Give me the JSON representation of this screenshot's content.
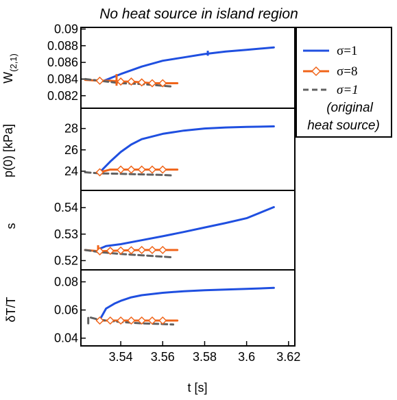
{
  "chart_data": {
    "type": "line",
    "title": "No heat source in island region",
    "xlabel": "t [s]",
    "xticks": [
      "3.54",
      "3.56",
      "3.58",
      "3.6",
      "3.62"
    ],
    "xlim": [
      3.521,
      3.623
    ],
    "colors": {
      "sigma1": "#1f4fe0",
      "sigma8": "#f06419",
      "original": "#606060"
    },
    "legend": {
      "placement": "top-right",
      "entries": [
        {
          "series": "sigma1",
          "label": "σ=1"
        },
        {
          "series": "sigma8",
          "label": "σ=8"
        },
        {
          "series": "original",
          "label": "σ=1",
          "note1": "(original",
          "note2": "heat source)"
        }
      ]
    },
    "panels": [
      {
        "ylabel": "W",
        "ylabel_sub": "(2,1)",
        "ylim": [
          0.0805,
          0.0902
        ],
        "yticks": [
          0.082,
          0.084,
          0.086,
          0.088,
          0.09
        ],
        "yticklabels": [
          "0.082",
          "0.084",
          "0.086",
          "0.088",
          "0.09"
        ],
        "series": [
          {
            "key": "sigma1",
            "x": [
              3.532,
              3.54,
              3.55,
              3.56,
              3.57,
              3.58,
              3.59,
              3.6,
              3.613
            ],
            "y": [
              0.0838,
              0.0846,
              0.0855,
              0.0862,
              0.0866,
              0.087,
              0.0873,
              0.0875,
              0.0878
            ]
          },
          {
            "key": "sigma8",
            "x": [
              3.523,
              3.53,
              3.535,
              3.54,
              3.545,
              3.55,
              3.555,
              3.56,
              3.567
            ],
            "y": [
              0.0839,
              0.0838,
              0.0838,
              0.0837,
              0.0837,
              0.0836,
              0.0835,
              0.0835,
              0.0835
            ]
          },
          {
            "key": "original",
            "x": [
              3.523,
              3.53,
              3.54,
              3.55,
              3.56,
              3.565
            ],
            "y": [
              0.084,
              0.0838,
              0.0835,
              0.0834,
              0.0832,
              0.0831
            ]
          }
        ],
        "markers": {
          "x": [
            3.53,
            3.54,
            3.545,
            3.55,
            3.555,
            3.56
          ],
          "y": [
            0.0838,
            0.0837,
            0.0837,
            0.0836,
            0.0835,
            0.0835
          ]
        },
        "vmarks": [
          {
            "key": "sigma1",
            "x": 3.5815,
            "y1": 0.0868,
            "y2": 0.0874
          },
          {
            "key": "sigma8",
            "x": 3.538,
            "y1": 0.0832,
            "y2": 0.0846
          }
        ]
      },
      {
        "ylabel": "p(0) [kPa]",
        "ylim": [
          22.2,
          29.9
        ],
        "yticks": [
          24,
          26,
          28
        ],
        "yticklabels": [
          "24",
          "26",
          "28"
        ],
        "series": [
          {
            "key": "sigma1",
            "x": [
              3.53,
              3.535,
              3.54,
              3.545,
              3.55,
              3.56,
              3.57,
              3.58,
              3.59,
              3.6,
              3.613
            ],
            "y": [
              23.9,
              24.9,
              25.8,
              26.5,
              27.0,
              27.5,
              27.8,
              28.0,
              28.1,
              28.15,
              28.2
            ]
          },
          {
            "key": "sigma8",
            "x": [
              3.53,
              3.535,
              3.54,
              3.55,
              3.56,
              3.567
            ],
            "y": [
              23.9,
              24.15,
              24.15,
              24.15,
              24.15,
              24.15
            ]
          },
          {
            "key": "original",
            "x": [
              3.523,
              3.53,
              3.54,
              3.55,
              3.56,
              3.565
            ],
            "y": [
              23.9,
              23.8,
              23.75,
              23.7,
              23.65,
              23.6
            ]
          }
        ],
        "markers": {
          "x": [
            3.53,
            3.54,
            3.545,
            3.55,
            3.555,
            3.56
          ],
          "y": [
            23.9,
            24.15,
            24.15,
            24.15,
            24.15,
            24.15
          ]
        },
        "vmarks": []
      },
      {
        "ylabel": "s",
        "ylim": [
          0.5165,
          0.5465
        ],
        "yticks": [
          0.52,
          0.53,
          0.54
        ],
        "yticklabels": [
          "0.52",
          "0.53",
          "0.54"
        ],
        "series": [
          {
            "key": "sigma1",
            "x": [
              3.53,
              3.533,
              3.54,
              3.55,
              3.56,
              3.57,
              3.58,
              3.59,
              3.6,
              3.613
            ],
            "y": [
              0.5245,
              0.5255,
              0.5262,
              0.5277,
              0.5292,
              0.5308,
              0.5325,
              0.5342,
              0.536,
              0.5402
            ]
          },
          {
            "key": "sigma8",
            "x": [
              3.523,
              3.53,
              3.535,
              3.54,
              3.55,
              3.56,
              3.567
            ],
            "y": [
              0.524,
              0.5235,
              0.5237,
              0.5238,
              0.524,
              0.524,
              0.524
            ]
          },
          {
            "key": "original",
            "x": [
              3.523,
              3.53,
              3.54,
              3.55,
              3.56,
              3.565
            ],
            "y": [
              0.524,
              0.5232,
              0.5225,
              0.522,
              0.5215,
              0.5212
            ]
          }
        ],
        "markers": {
          "x": [
            3.53,
            3.535,
            3.54,
            3.545,
            3.55,
            3.555,
            3.56
          ],
          "y": [
            0.5235,
            0.5237,
            0.5238,
            0.5239,
            0.524,
            0.524,
            0.524
          ]
        },
        "vmarks": [
          {
            "key": "sigma8",
            "x": 3.5292,
            "y1": 0.5228,
            "y2": 0.5258
          }
        ]
      },
      {
        "ylabel": "δT/T",
        "ylim": [
          0.0345,
          0.0885
        ],
        "yticks": [
          0.04,
          0.06,
          0.08
        ],
        "yticklabels": [
          "0.04",
          "0.06",
          "0.08"
        ],
        "series": [
          {
            "key": "sigma1",
            "x": [
              3.53,
              3.533,
              3.537,
              3.54,
              3.545,
              3.55,
              3.56,
              3.57,
              3.58,
              3.59,
              3.6,
              3.613
            ],
            "y": [
              0.053,
              0.061,
              0.0645,
              0.0665,
              0.069,
              0.0705,
              0.0722,
              0.0733,
              0.074,
              0.0745,
              0.075,
              0.0757
            ]
          },
          {
            "key": "sigma8",
            "x": [
              3.53,
              3.535,
              3.54,
              3.55,
              3.56,
              3.567
            ],
            "y": [
              0.0525,
              0.0525,
              0.0525,
              0.0525,
              0.0525,
              0.0525
            ]
          },
          {
            "key": "original",
            "x": [
              3.5245,
              3.5245,
              3.526,
              3.53,
              3.54,
              3.55,
              3.56,
              3.565
            ],
            "y": [
              0.0505,
              0.055,
              0.0545,
              0.053,
              0.0515,
              0.0505,
              0.05,
              0.0497
            ]
          }
        ],
        "markers": {
          "x": [
            3.53,
            3.535,
            3.54,
            3.545,
            3.55,
            3.555,
            3.56
          ],
          "y": [
            0.0525,
            0.0525,
            0.0525,
            0.0525,
            0.0525,
            0.0525,
            0.0525
          ]
        },
        "vmarks": []
      }
    ]
  }
}
